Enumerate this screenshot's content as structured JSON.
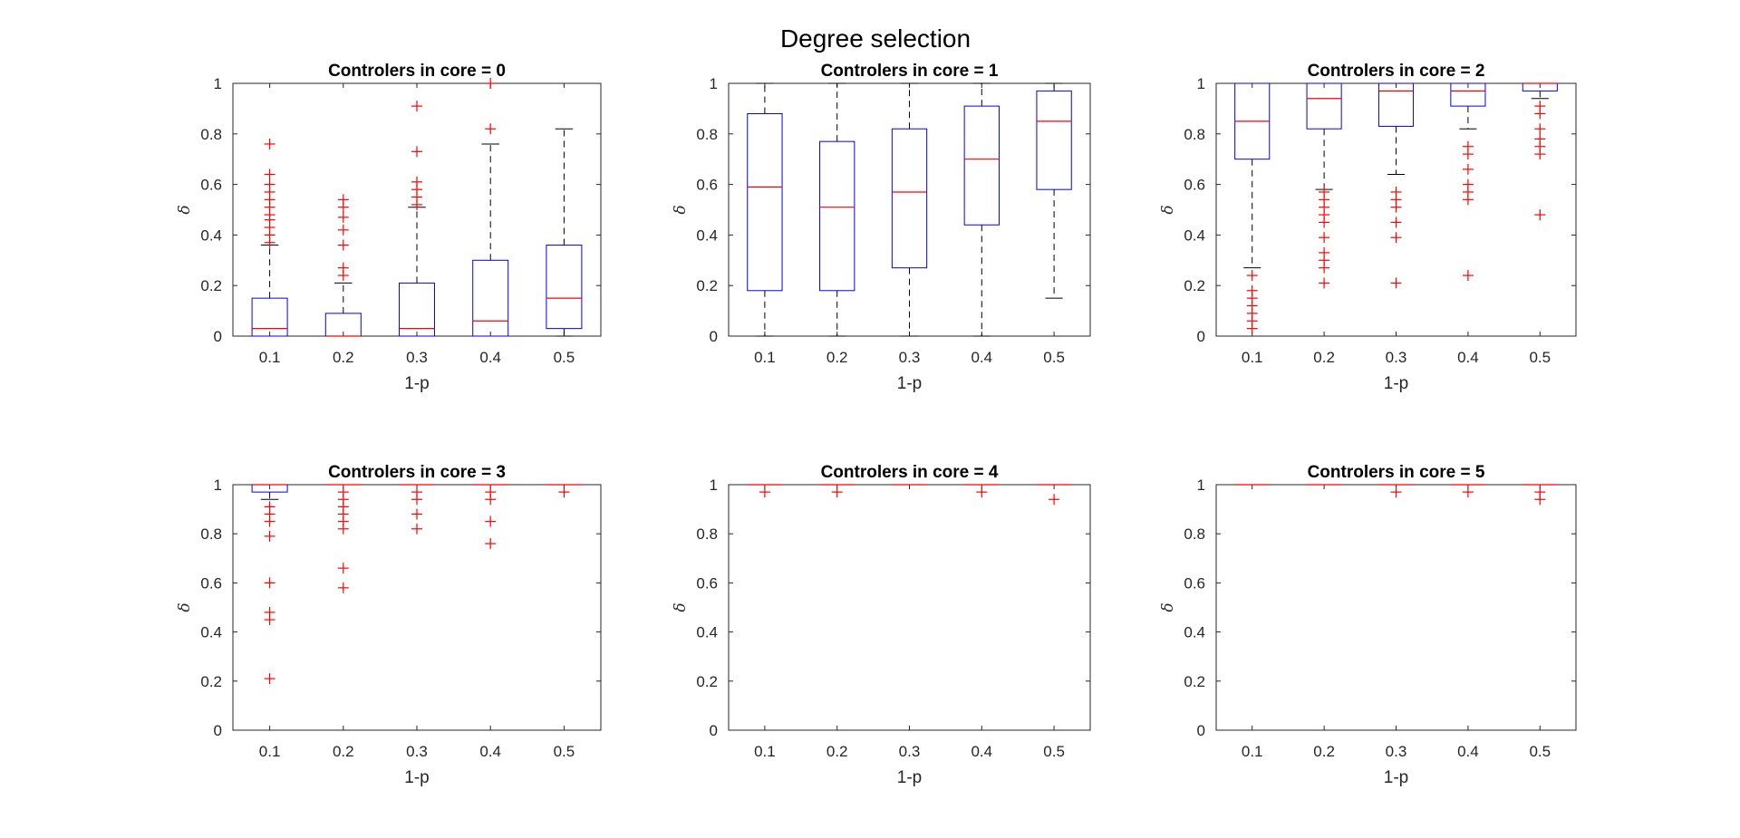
{
  "figure": {
    "title": "Degree selection"
  },
  "colors": {
    "box": "#0000ff",
    "median": "#ff0000",
    "outlier": "#ff0000",
    "whisker": "#000000",
    "axes": "#262626"
  },
  "chart_data": [
    {
      "type": "box",
      "title": "Controlers in core = 0",
      "xlabel": "1-p",
      "ylabel": "δ",
      "ylim": [
        0,
        1
      ],
      "categories": [
        "0.1",
        "0.2",
        "0.3",
        "0.4",
        "0.5"
      ],
      "yticks": [
        "0",
        "0.2",
        "0.4",
        "0.6",
        "0.8",
        "1"
      ],
      "boxes": [
        {
          "q1": 0,
          "median": 0.03,
          "q3": 0.15,
          "whisker_low": 0,
          "whisker_high": 0.36,
          "outliers": [
            0.37,
            0.4,
            0.43,
            0.46,
            0.48,
            0.51,
            0.54,
            0.57,
            0.6,
            0.64,
            0.76
          ]
        },
        {
          "q1": 0,
          "median": 0.0,
          "q3": 0.09,
          "whisker_low": 0,
          "whisker_high": 0.21,
          "outliers": [
            0.24,
            0.27,
            0.36,
            0.42,
            0.47,
            0.51,
            0.54
          ]
        },
        {
          "q1": 0,
          "median": 0.03,
          "q3": 0.21,
          "whisker_low": 0,
          "whisker_high": 0.51,
          "outliers": [
            0.52,
            0.55,
            0.58,
            0.61,
            0.73,
            0.91
          ]
        },
        {
          "q1": 0,
          "median": 0.06,
          "q3": 0.3,
          "whisker_low": 0,
          "whisker_high": 0.76,
          "outliers": [
            0.82,
            1.0
          ]
        },
        {
          "q1": 0.03,
          "median": 0.15,
          "q3": 0.36,
          "whisker_low": 0,
          "whisker_high": 0.82,
          "outliers": []
        }
      ]
    },
    {
      "type": "box",
      "title": "Controlers in core = 1",
      "xlabel": "1-p",
      "ylabel": "δ",
      "ylim": [
        0,
        1
      ],
      "categories": [
        "0.1",
        "0.2",
        "0.3",
        "0.4",
        "0.5"
      ],
      "yticks": [
        "0",
        "0.2",
        "0.4",
        "0.6",
        "0.8",
        "1"
      ],
      "boxes": [
        {
          "q1": 0.18,
          "median": 0.59,
          "q3": 0.88,
          "whisker_low": 0,
          "whisker_high": 1.0,
          "outliers": []
        },
        {
          "q1": 0.18,
          "median": 0.51,
          "q3": 0.77,
          "whisker_low": 0,
          "whisker_high": 1.0,
          "outliers": []
        },
        {
          "q1": 0.27,
          "median": 0.57,
          "q3": 0.82,
          "whisker_low": 0,
          "whisker_high": 1.0,
          "outliers": []
        },
        {
          "q1": 0.44,
          "median": 0.7,
          "q3": 0.91,
          "whisker_low": 0,
          "whisker_high": 1.0,
          "outliers": []
        },
        {
          "q1": 0.58,
          "median": 0.85,
          "q3": 0.97,
          "whisker_low": 0.15,
          "whisker_high": 1.0,
          "outliers": []
        }
      ]
    },
    {
      "type": "box",
      "title": "Controlers in core = 2",
      "xlabel": "1-p",
      "ylabel": "δ",
      "ylim": [
        0,
        1
      ],
      "categories": [
        "0.1",
        "0.2",
        "0.3",
        "0.4",
        "0.5"
      ],
      "yticks": [
        "0",
        "0.2",
        "0.4",
        "0.6",
        "0.8",
        "1"
      ],
      "boxes": [
        {
          "q1": 0.7,
          "median": 0.85,
          "q3": 1.0,
          "whisker_low": 0.27,
          "whisker_high": 1.0,
          "outliers": [
            0.03,
            0.06,
            0.09,
            0.12,
            0.15,
            0.18,
            0.24
          ]
        },
        {
          "q1": 0.82,
          "median": 0.94,
          "q3": 1.0,
          "whisker_low": 0.58,
          "whisker_high": 1.0,
          "outliers": [
            0.21,
            0.27,
            0.3,
            0.33,
            0.39,
            0.45,
            0.48,
            0.51,
            0.54,
            0.57
          ]
        },
        {
          "q1": 0.83,
          "median": 0.97,
          "q3": 1.0,
          "whisker_low": 0.64,
          "whisker_high": 1.0,
          "outliers": [
            0.21,
            0.39,
            0.45,
            0.51,
            0.54,
            0.57
          ]
        },
        {
          "q1": 0.91,
          "median": 0.97,
          "q3": 1.0,
          "whisker_low": 0.82,
          "whisker_high": 1.0,
          "outliers": [
            0.24,
            0.54,
            0.57,
            0.6,
            0.66,
            0.72,
            0.75
          ]
        },
        {
          "q1": 0.97,
          "median": 1.0,
          "q3": 1.0,
          "whisker_low": 0.94,
          "whisker_high": 1.0,
          "outliers": [
            0.48,
            0.72,
            0.75,
            0.78,
            0.82,
            0.88,
            0.91
          ]
        }
      ]
    },
    {
      "type": "box",
      "title": "Controlers in core = 3",
      "xlabel": "1-p",
      "ylabel": "δ",
      "ylim": [
        0,
        1
      ],
      "categories": [
        "0.1",
        "0.2",
        "0.3",
        "0.4",
        "0.5"
      ],
      "yticks": [
        "0",
        "0.2",
        "0.4",
        "0.6",
        "0.8",
        "1"
      ],
      "boxes": [
        {
          "q1": 0.97,
          "median": 1.0,
          "q3": 1.0,
          "whisker_low": 0.94,
          "whisker_high": 1.0,
          "outliers": [
            0.21,
            0.45,
            0.48,
            0.6,
            0.79,
            0.85,
            0.88,
            0.91
          ]
        },
        {
          "q1": 1.0,
          "median": 1.0,
          "q3": 1.0,
          "whisker_low": 1.0,
          "whisker_high": 1.0,
          "outliers": [
            0.58,
            0.66,
            0.82,
            0.85,
            0.88,
            0.91,
            0.94,
            0.97
          ]
        },
        {
          "q1": 1.0,
          "median": 1.0,
          "q3": 1.0,
          "whisker_low": 1.0,
          "whisker_high": 1.0,
          "outliers": [
            0.82,
            0.88,
            0.94,
            0.97
          ]
        },
        {
          "q1": 1.0,
          "median": 1.0,
          "q3": 1.0,
          "whisker_low": 1.0,
          "whisker_high": 1.0,
          "outliers": [
            0.76,
            0.85,
            0.94,
            0.97
          ]
        },
        {
          "q1": 1.0,
          "median": 1.0,
          "q3": 1.0,
          "whisker_low": 1.0,
          "whisker_high": 1.0,
          "outliers": [
            0.97
          ]
        }
      ]
    },
    {
      "type": "box",
      "title": "Controlers in core = 4",
      "xlabel": "1-p",
      "ylabel": "δ",
      "ylim": [
        0,
        1
      ],
      "categories": [
        "0.1",
        "0.2",
        "0.3",
        "0.4",
        "0.5"
      ],
      "yticks": [
        "0",
        "0.2",
        "0.4",
        "0.6",
        "0.8",
        "1"
      ],
      "boxes": [
        {
          "q1": 1.0,
          "median": 1.0,
          "q3": 1.0,
          "whisker_low": 1.0,
          "whisker_high": 1.0,
          "outliers": [
            0.97
          ]
        },
        {
          "q1": 1.0,
          "median": 1.0,
          "q3": 1.0,
          "whisker_low": 1.0,
          "whisker_high": 1.0,
          "outliers": [
            0.97
          ]
        },
        {
          "q1": 1.0,
          "median": 1.0,
          "q3": 1.0,
          "whisker_low": 1.0,
          "whisker_high": 1.0,
          "outliers": []
        },
        {
          "q1": 1.0,
          "median": 1.0,
          "q3": 1.0,
          "whisker_low": 1.0,
          "whisker_high": 1.0,
          "outliers": [
            0.97
          ]
        },
        {
          "q1": 1.0,
          "median": 1.0,
          "q3": 1.0,
          "whisker_low": 1.0,
          "whisker_high": 1.0,
          "outliers": [
            0.94
          ]
        }
      ]
    },
    {
      "type": "box",
      "title": "Controlers in core = 5",
      "xlabel": "1-p",
      "ylabel": "δ",
      "ylim": [
        0,
        1
      ],
      "categories": [
        "0.1",
        "0.2",
        "0.3",
        "0.4",
        "0.5"
      ],
      "yticks": [
        "0",
        "0.2",
        "0.4",
        "0.6",
        "0.8",
        "1"
      ],
      "boxes": [
        {
          "q1": 1.0,
          "median": 1.0,
          "q3": 1.0,
          "whisker_low": 1.0,
          "whisker_high": 1.0,
          "outliers": []
        },
        {
          "q1": 1.0,
          "median": 1.0,
          "q3": 1.0,
          "whisker_low": 1.0,
          "whisker_high": 1.0,
          "outliers": []
        },
        {
          "q1": 1.0,
          "median": 1.0,
          "q3": 1.0,
          "whisker_low": 1.0,
          "whisker_high": 1.0,
          "outliers": [
            0.97
          ]
        },
        {
          "q1": 1.0,
          "median": 1.0,
          "q3": 1.0,
          "whisker_low": 1.0,
          "whisker_high": 1.0,
          "outliers": [
            0.97
          ]
        },
        {
          "q1": 1.0,
          "median": 1.0,
          "q3": 1.0,
          "whisker_low": 1.0,
          "whisker_high": 1.0,
          "outliers": [
            0.94,
            0.97
          ]
        }
      ]
    }
  ]
}
